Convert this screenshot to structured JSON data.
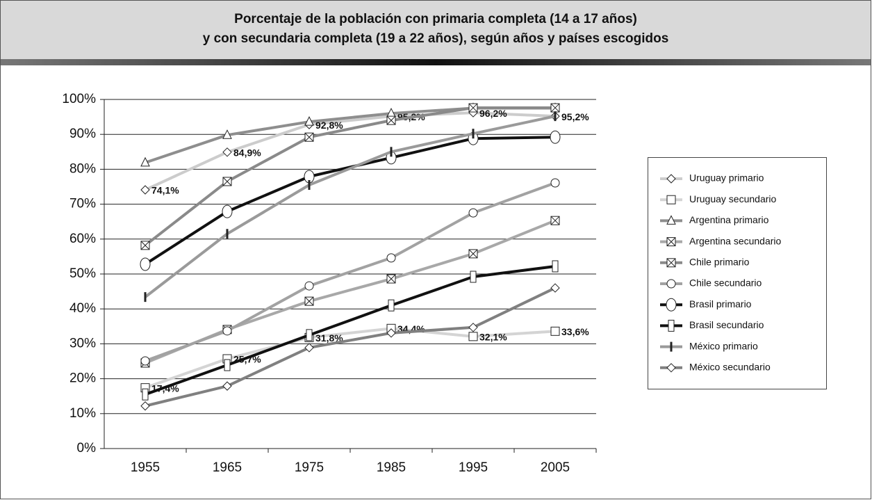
{
  "chart_data": {
    "type": "line",
    "title": [
      "Porcentaje de la población con primaria completa (14 a 17 años)",
      "y con secundaria completa (19 a 22 años), según años y países escogidos"
    ],
    "categories": [
      "1955",
      "1965",
      "1975",
      "1985",
      "1995",
      "2005"
    ],
    "ylim": [
      0,
      100
    ],
    "yticks": [
      {
        "value": 0,
        "label": "0%"
      },
      {
        "value": 10,
        "label": "10%"
      },
      {
        "value": 20,
        "label": "20%"
      },
      {
        "value": 30,
        "label": "30%"
      },
      {
        "value": 40,
        "label": "40%"
      },
      {
        "value": 50,
        "label": "50%"
      },
      {
        "value": 60,
        "label": "60%"
      },
      {
        "value": 70,
        "label": "70%"
      },
      {
        "value": 80,
        "label": "80%"
      },
      {
        "value": 90,
        "label": "90%"
      },
      {
        "value": 100,
        "label": "100%"
      }
    ],
    "grid": true,
    "legend": "right",
    "series": [
      {
        "name": "Uruguay primario",
        "color": "#cccccc",
        "marker": "diamond",
        "values": [
          74.1,
          84.9,
          92.8,
          95.2,
          96.2,
          95.2
        ],
        "value_labels": [
          "74,1%",
          "84,9%",
          "92,8%",
          "95,2%",
          "96,2%",
          "95,2%"
        ]
      },
      {
        "name": "Uruguay secundario",
        "color": "#d4d4d4",
        "marker": "square",
        "values": [
          17.4,
          25.7,
          31.8,
          34.4,
          32.1,
          33.6
        ],
        "value_labels": [
          "17,4%",
          "25,7%",
          "31,8%",
          "34,4%",
          "32,1%",
          "33,6%"
        ]
      },
      {
        "name": "Argentina primario",
        "color": "#8e8e8e",
        "marker": "triangle",
        "values": [
          81.9,
          89.8,
          93.6,
          96,
          97.5,
          97.5
        ]
      },
      {
        "name": "Argentina secundario",
        "color": "#a8a8a8",
        "marker": "xsquare",
        "values": [
          24.5,
          34.1,
          42.2,
          48.6,
          55.8,
          65.3
        ]
      },
      {
        "name": "Chile primario",
        "color": "#8a8a8a",
        "marker": "xsquare",
        "values": [
          58.2,
          76.5,
          89.2,
          94,
          97.6,
          97.6
        ]
      },
      {
        "name": "Chile secundario",
        "color": "#a2a2a2",
        "marker": "circle",
        "values": [
          25.1,
          33.7,
          46.6,
          54.6,
          67.5,
          76.1
        ]
      },
      {
        "name": "Brasil primario",
        "color": "#111111",
        "marker": "bigcircle",
        "values": [
          52.8,
          67.9,
          77.9,
          83.3,
          88.8,
          89.2
        ]
      },
      {
        "name": "Brasil secundario",
        "color": "#111111",
        "marker": "halfsquare",
        "values": [
          15.5,
          23.9,
          32.5,
          41,
          49.2,
          52.2
        ]
      },
      {
        "name": "México primario",
        "color": "#9a9a9a",
        "marker": "bar",
        "values": [
          43.4,
          61.5,
          75.5,
          85,
          90.2,
          95.2
        ]
      },
      {
        "name": "México secundario",
        "color": "#808080",
        "marker": "diamond",
        "values": [
          12.2,
          17.9,
          28.9,
          33.1,
          34.7,
          46
        ]
      }
    ]
  }
}
